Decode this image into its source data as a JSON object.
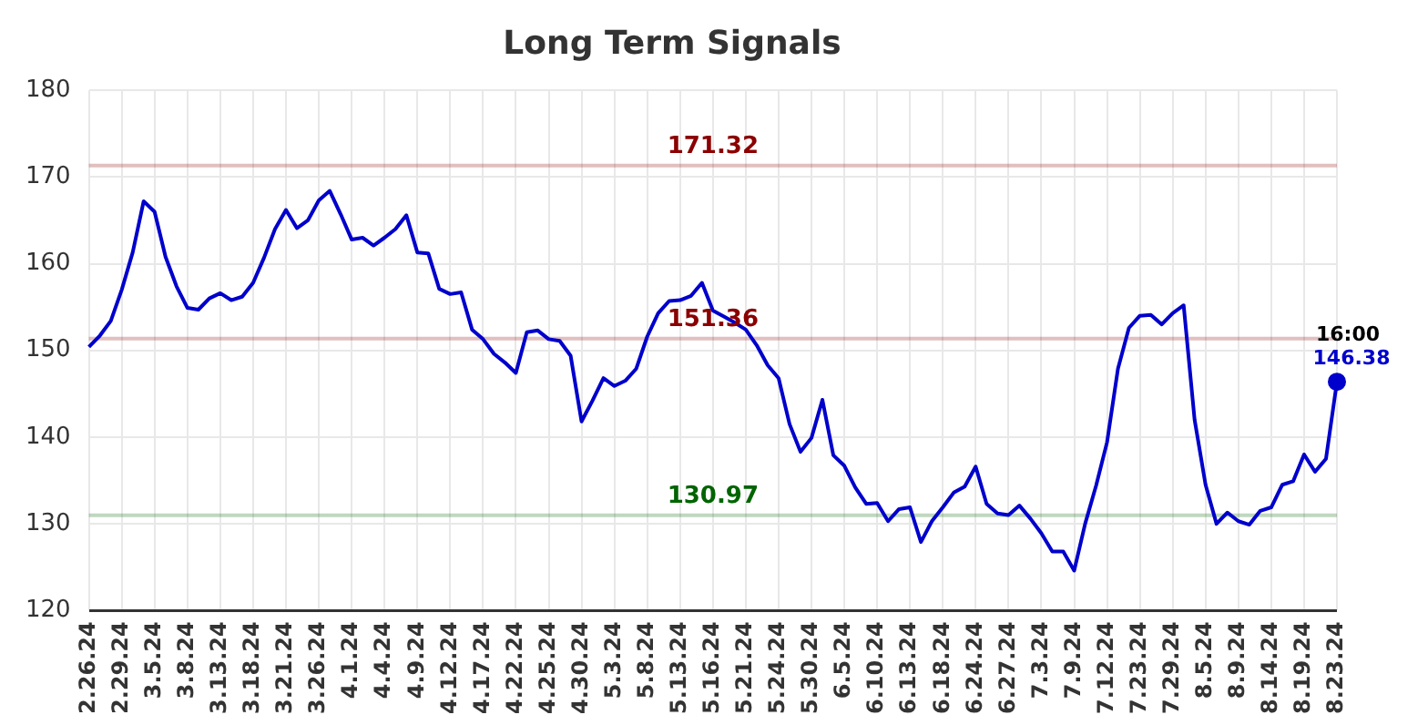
{
  "chart_data": {
    "type": "line",
    "title": "Long Term Signals",
    "categories": [
      "2.26.24",
      null,
      null,
      "2.29.24",
      null,
      null,
      "3.5.24",
      null,
      null,
      "3.8.24",
      null,
      null,
      "3.13.24",
      null,
      null,
      "3.18.24",
      null,
      null,
      "3.21.24",
      null,
      null,
      "3.26.24",
      null,
      null,
      "4.1.24",
      null,
      null,
      "4.4.24",
      null,
      null,
      "4.9.24",
      null,
      null,
      "4.12.24",
      null,
      null,
      "4.17.24",
      null,
      null,
      "4.22.24",
      null,
      null,
      "4.25.24",
      null,
      null,
      "4.30.24",
      null,
      null,
      "5.3.24",
      null,
      null,
      "5.8.24",
      null,
      null,
      "5.13.24",
      null,
      null,
      "5.16.24",
      null,
      null,
      "5.21.24",
      null,
      null,
      "5.24.24",
      null,
      null,
      "5.30.24",
      null,
      null,
      "6.5.24",
      null,
      null,
      "6.10.24",
      null,
      null,
      "6.13.24",
      null,
      null,
      "6.18.24",
      null,
      null,
      "6.24.24",
      null,
      null,
      "6.27.24",
      null,
      null,
      "7.3.24",
      null,
      null,
      "7.9.24",
      null,
      null,
      "7.12.24",
      null,
      null,
      "7.23.24",
      null,
      null,
      "7.29.24",
      null,
      null,
      "8.5.24",
      null,
      null,
      "8.9.24",
      null,
      null,
      "8.14.24",
      null,
      null,
      "8.19.24",
      null,
      null,
      "8.23.24"
    ],
    "series": [
      {
        "color": "#0000cc",
        "values": [
          150.4,
          151.7,
          153.4,
          157.0,
          161.3,
          167.2,
          166.0,
          160.8,
          157.4,
          154.9,
          154.7,
          156.0,
          156.6,
          155.8,
          156.2,
          157.8,
          160.7,
          164.0,
          166.2,
          164.1,
          165.0,
          167.3,
          168.4,
          165.7,
          162.8,
          163.0,
          162.1,
          163.0,
          164.0,
          165.6,
          161.3,
          161.2,
          157.1,
          156.5,
          156.7,
          152.4,
          151.3,
          149.6,
          148.6,
          147.4,
          152.1,
          152.3,
          151.3,
          151.1,
          149.4,
          141.8,
          144.2,
          146.8,
          145.9,
          146.5,
          147.9,
          151.6,
          154.3,
          155.7,
          155.8,
          156.3,
          157.8,
          154.6,
          153.9,
          153.2,
          152.4,
          150.6,
          148.3,
          146.8,
          141.5,
          138.3,
          139.9,
          144.3,
          137.9,
          136.7,
          134.2,
          132.3,
          132.4,
          130.3,
          131.7,
          131.9,
          127.9,
          130.3,
          131.9,
          133.6,
          134.3,
          136.6,
          132.3,
          131.2,
          131.0,
          132.1,
          130.6,
          128.9,
          126.8,
          126.8,
          124.6,
          130.0,
          134.4,
          139.4,
          147.9,
          152.6,
          154.0,
          154.1,
          153.0,
          154.3,
          155.2,
          142.0,
          134.5,
          130.0,
          131.3,
          130.3,
          129.9,
          131.5,
          131.9,
          134.5,
          134.9,
          138.0,
          136.0,
          137.5,
          146.38
        ],
        "value_labels": [
          null,
          null,
          null,
          null,
          null,
          null,
          null,
          null,
          null,
          null,
          null,
          null,
          null,
          null,
          null,
          null,
          null,
          null,
          null,
          null,
          null,
          null,
          null,
          null,
          null,
          null,
          null,
          null,
          null,
          null,
          null,
          null,
          null,
          null,
          null,
          null,
          null,
          null,
          null,
          null,
          null,
          null,
          null,
          null,
          null,
          null,
          null,
          null,
          null,
          null,
          null,
          null,
          null,
          null,
          null,
          null,
          null,
          null,
          null,
          null,
          null,
          null,
          null,
          null,
          null,
          null,
          null,
          null,
          null,
          null,
          null,
          null,
          null,
          null,
          null,
          null,
          null,
          null,
          null,
          null,
          null,
          null,
          null,
          null,
          null,
          null,
          null,
          null,
          null,
          null,
          null,
          null,
          null,
          null,
          null,
          null,
          null,
          null,
          null,
          null,
          null,
          null,
          null,
          null,
          null,
          null,
          null,
          null,
          null,
          null,
          null,
          null,
          null,
          null,
          "146.38"
        ]
      }
    ],
    "ylim": [
      120,
      180
    ],
    "yticks": [
      120,
      130,
      140,
      150,
      160,
      170,
      180
    ],
    "ref_lines": [
      {
        "axis": "y",
        "value": 171.32,
        "label": "171.32",
        "color": "#8b0000"
      },
      {
        "axis": "y",
        "value": 151.36,
        "label": "151.36",
        "color": "#8b0000"
      },
      {
        "axis": "y",
        "value": 130.97,
        "label": "130.97",
        "color": "#006400"
      }
    ],
    "annotations": [
      "16:00"
    ],
    "grid": true,
    "legend": false,
    "marker": "none",
    "line_style": "solid"
  }
}
